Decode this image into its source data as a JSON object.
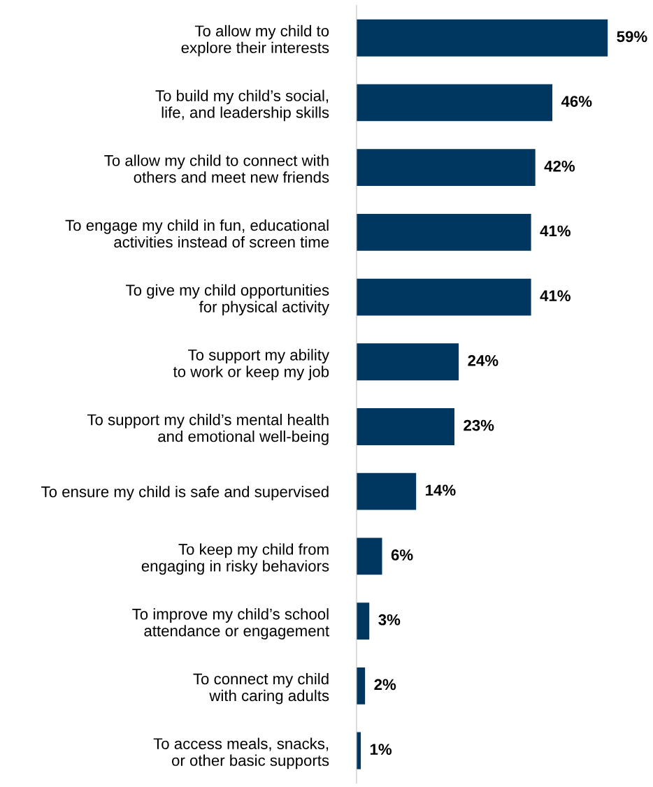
{
  "chart_data": {
    "type": "bar",
    "orientation": "horizontal",
    "categories": [
      "To allow my child to\nexplore their interests",
      "To build my child’s social,\nlife, and leadership skills",
      "To allow my child to connect with\nothers and meet new friends",
      "To engage my child in fun, educational\nactivities instead of screen time",
      "To give my child opportunities\nfor physical activity",
      "To support my ability\nto work or keep my job",
      "To support my child’s mental health\nand emotional well-being",
      "To ensure my child is safe and supervised",
      "To keep my child from\nengaging in risky behaviors",
      "To improve my child’s school\nattendance or engagement",
      "To connect my child\nwith caring adults",
      "To access meals, snacks,\nor other basic supports"
    ],
    "values": [
      59,
      46,
      42,
      41,
      41,
      24,
      23,
      14,
      6,
      3,
      2,
      1
    ],
    "value_labels": [
      "59%",
      "46%",
      "42%",
      "41%",
      "41%",
      "24%",
      "23%",
      "14%",
      "6%",
      "3%",
      "2%",
      "1%"
    ],
    "color": "#003761",
    "grid": false,
    "legend": false
  }
}
